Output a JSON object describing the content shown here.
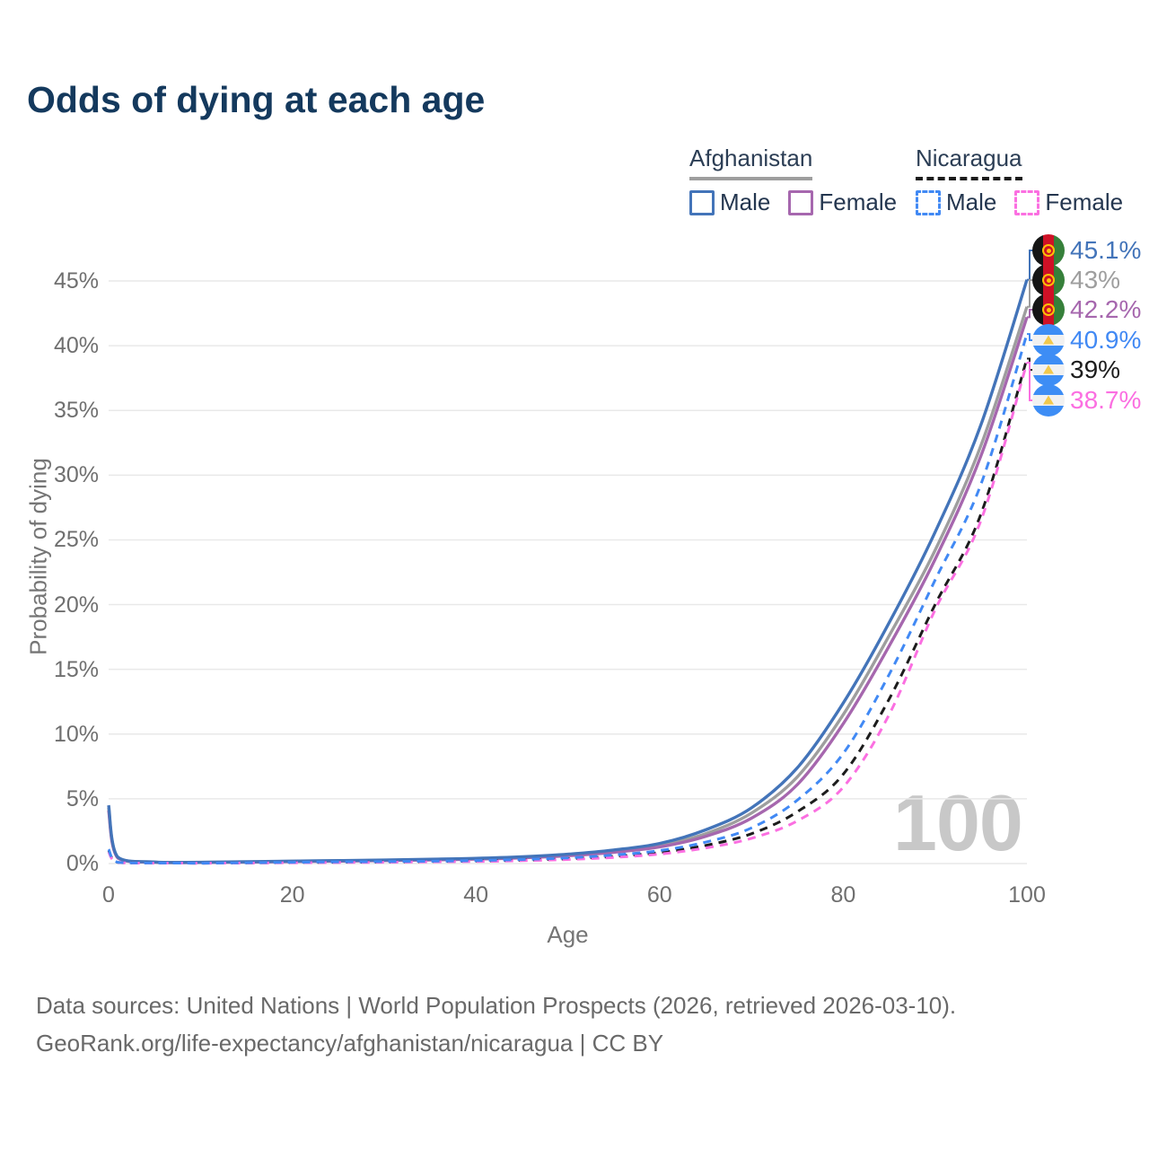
{
  "title": "Odds of dying at each age",
  "legend": {
    "afghanistan": {
      "name": "Afghanistan",
      "male": "Male",
      "female": "Female"
    },
    "nicaragua": {
      "name": "Nicaragua",
      "male": "Male",
      "female": "Female"
    }
  },
  "watermark": "100",
  "footer": {
    "line1": "Data sources: United Nations | World Population Prospects (2026, retrieved 2026-03-10).",
    "line2": "GeoRank.org/life-expectancy/afghanistan/nicaragua | CC BY"
  },
  "chart_data": {
    "type": "line",
    "title": "Odds of dying at each age",
    "xlabel": "Age",
    "ylabel": "Probability of dying",
    "xlim": [
      0,
      100
    ],
    "ylim": [
      0,
      47
    ],
    "grid": "horizontal",
    "x_ticks": [
      {
        "v": 0,
        "label": "0"
      },
      {
        "v": 20,
        "label": "20"
      },
      {
        "v": 40,
        "label": "40"
      },
      {
        "v": 60,
        "label": "60"
      },
      {
        "v": 80,
        "label": "80"
      },
      {
        "v": 100,
        "label": "100"
      }
    ],
    "y_ticks": [
      {
        "v": 0,
        "label": "0%"
      },
      {
        "v": 5,
        "label": "5%"
      },
      {
        "v": 10,
        "label": "10%"
      },
      {
        "v": 15,
        "label": "15%"
      },
      {
        "v": 20,
        "label": "20%"
      },
      {
        "v": 25,
        "label": "25%"
      },
      {
        "v": 30,
        "label": "30%"
      },
      {
        "v": 35,
        "label": "35%"
      },
      {
        "v": 40,
        "label": "40%"
      },
      {
        "v": 45,
        "label": "45%"
      }
    ],
    "x": [
      0,
      1,
      5,
      10,
      15,
      20,
      25,
      30,
      35,
      40,
      45,
      50,
      55,
      60,
      65,
      70,
      75,
      80,
      85,
      90,
      95,
      100
    ],
    "series": [
      {
        "name": "Afghanistan Male",
        "country": "Afghanistan",
        "sex": "Male",
        "style": "solid",
        "color": "#4374b9",
        "flag": "af",
        "end_label": "45.1%",
        "values": [
          4.5,
          0.5,
          0.12,
          0.1,
          0.14,
          0.19,
          0.23,
          0.27,
          0.33,
          0.4,
          0.52,
          0.72,
          1.05,
          1.55,
          2.6,
          4.3,
          7.4,
          12.4,
          18.6,
          25.6,
          33.9,
          45.1
        ]
      },
      {
        "name": "Afghanistan Both sexes",
        "country": "Afghanistan",
        "sex": "Both",
        "style": "solid",
        "color": "#9e9e9e",
        "flag": "af",
        "end_label": "43%",
        "values": [
          4.3,
          0.46,
          0.11,
          0.09,
          0.12,
          0.17,
          0.21,
          0.25,
          0.3,
          0.37,
          0.48,
          0.66,
          0.95,
          1.4,
          2.3,
          3.9,
          6.7,
          11.5,
          17.6,
          24.2,
          32.3,
          43
        ]
      },
      {
        "name": "Afghanistan Female",
        "country": "Afghanistan",
        "sex": "Female",
        "style": "solid",
        "color": "#a667ae",
        "flag": "af",
        "end_label": "42.2%",
        "values": [
          4.1,
          0.43,
          0.1,
          0.08,
          0.11,
          0.15,
          0.19,
          0.23,
          0.28,
          0.34,
          0.44,
          0.6,
          0.87,
          1.28,
          2.1,
          3.5,
          6.1,
          10.8,
          16.8,
          23.5,
          31.5,
          42.2
        ]
      },
      {
        "name": "Nicaragua Male",
        "country": "Nicaragua",
        "sex": "Male",
        "style": "dashed",
        "color": "#4189f4",
        "flag": "ni",
        "end_label": "40.9%",
        "values": [
          1.1,
          0.1,
          0.04,
          0.03,
          0.06,
          0.1,
          0.13,
          0.15,
          0.18,
          0.23,
          0.31,
          0.44,
          0.66,
          1.0,
          1.65,
          2.75,
          4.9,
          8.5,
          14.6,
          21.9,
          29.3,
          40.9
        ]
      },
      {
        "name": "Nicaragua Both sexes",
        "country": "Nicaragua",
        "sex": "Both",
        "style": "dashed",
        "color": "#1c1c1c",
        "flag": "ni",
        "end_label": "39%",
        "values": [
          1.0,
          0.09,
          0.035,
          0.027,
          0.05,
          0.08,
          0.1,
          0.12,
          0.15,
          0.19,
          0.26,
          0.37,
          0.55,
          0.85,
          1.4,
          2.3,
          4.0,
          6.9,
          12.7,
          20.0,
          27.0,
          39
        ]
      },
      {
        "name": "Nicaragua Female",
        "country": "Nicaragua",
        "sex": "Female",
        "style": "dashed",
        "color": "#fb6fe1",
        "flag": "ni",
        "end_label": "38.7%",
        "values": [
          0.9,
          0.08,
          0.03,
          0.024,
          0.04,
          0.06,
          0.08,
          0.1,
          0.13,
          0.16,
          0.22,
          0.31,
          0.47,
          0.73,
          1.2,
          1.95,
          3.3,
          5.9,
          11.5,
          19.6,
          26.5,
          38.7
        ]
      }
    ]
  }
}
